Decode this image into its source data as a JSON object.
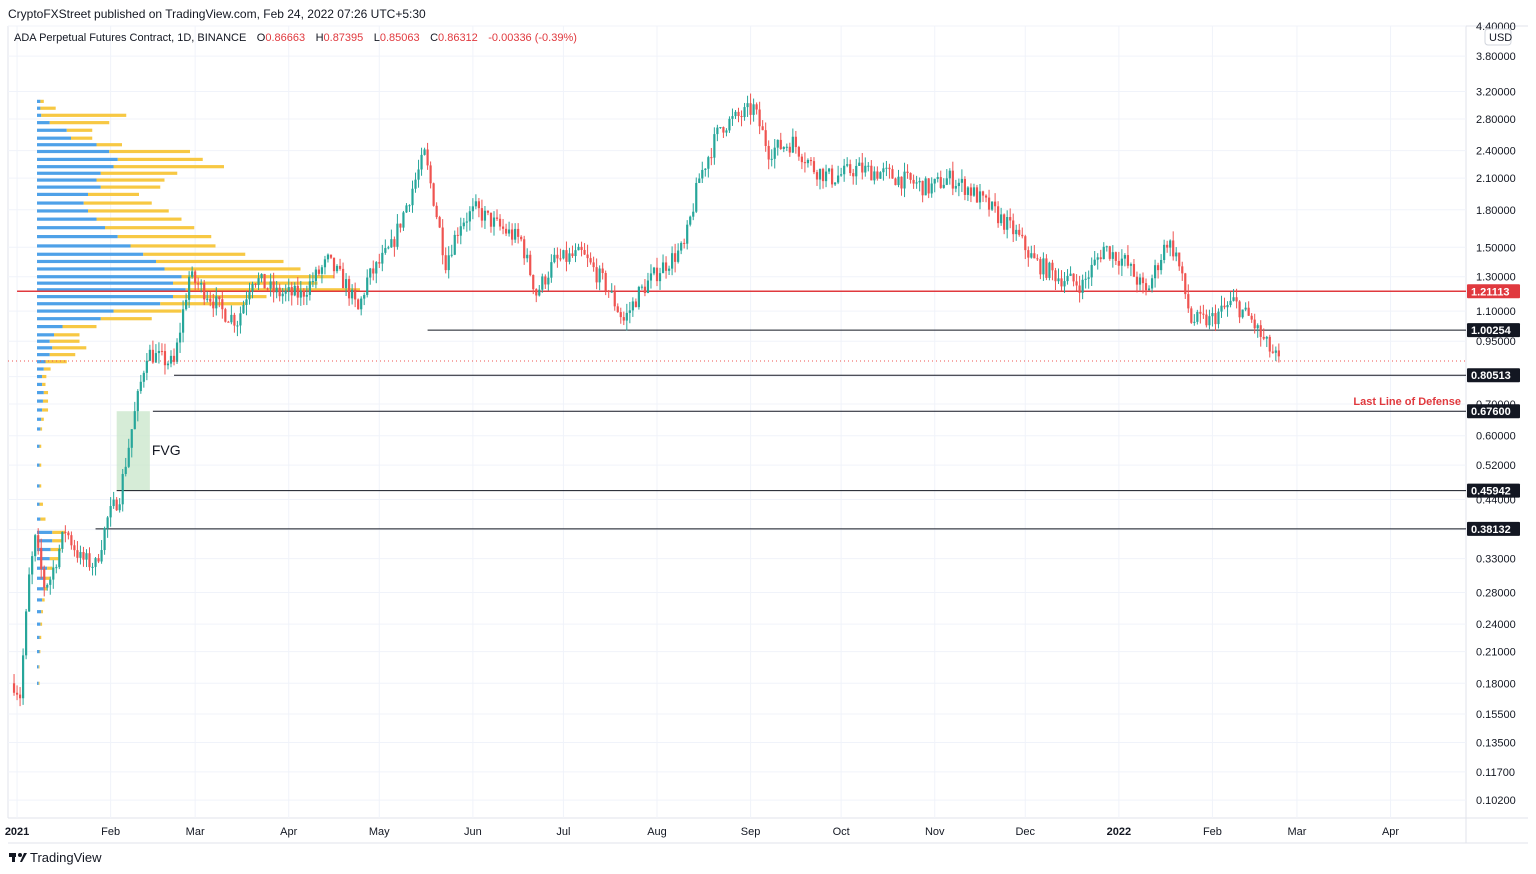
{
  "header": {
    "credit": "CryptoFXStreet published on TradingView.com, Feb 24, 2022 07:26 UTC+5:30"
  },
  "legend": {
    "symbol": "ADA Perpetual Futures Contract, 1D, BINANCE",
    "open_label": "O",
    "open": "0.86663",
    "high_label": "H",
    "high": "0.87395",
    "low_label": "L",
    "low": "0.85063",
    "close_label": "C",
    "close": "0.86312",
    "change": "-0.00336 (-0.39%)"
  },
  "currency_badge": "USD",
  "branding": "TradingView",
  "colors": {
    "up": "#26a69a",
    "down": "#ef5350",
    "vp_up": "#4ea1e8",
    "vp_down": "#f7c843",
    "resistance": "#e0393e",
    "fvg": "#c8e6c9"
  },
  "chart_data": {
    "type": "candlestick",
    "y_scale": "log",
    "ylim": [
      0.0935,
      4.4
    ],
    "x_ticks": [
      "2021",
      "Feb",
      "Mar",
      "Apr",
      "May",
      "Jun",
      "Jul",
      "Aug",
      "Sep",
      "Oct",
      "Nov",
      "Dec",
      "2022",
      "Feb",
      "Mar",
      "Apr"
    ],
    "x_range": [
      "2020-12-29",
      "2022-04-26"
    ],
    "y_ticks": [
      "0.10200",
      "0.11700",
      "0.13500",
      "0.15500",
      "0.18000",
      "0.21000",
      "0.24000",
      "0.28000",
      "0.33000",
      "0.38000",
      "0.44000",
      "0.52000",
      "0.60000",
      "0.70000",
      "0.80000",
      "0.95000",
      "1.10000",
      "1.30000",
      "1.50000",
      "1.80000",
      "2.10000",
      "2.40000",
      "2.80000",
      "3.20000",
      "3.80000",
      "4.40000"
    ],
    "levels": [
      {
        "value": 1.21113,
        "label": "1.21113",
        "color": "#e0393e",
        "from": "2021-01-01"
      },
      {
        "value": 1.00254,
        "label": "1.00254",
        "color": "#131722",
        "from": "2021-05-17"
      },
      {
        "value": 0.80513,
        "label": "0.80513",
        "color": "#131722",
        "from": "2021-02-22"
      },
      {
        "value": 0.676,
        "label": "0.67600",
        "color": "#131722",
        "from": "2021-02-15"
      },
      {
        "value": 0.45942,
        "label": "0.45942",
        "color": "#131722",
        "from": "2021-02-03"
      },
      {
        "value": 0.38132,
        "label": "0.38132",
        "color": "#131722",
        "from": "2021-01-27"
      }
    ],
    "annotations": [
      {
        "text": "FVG",
        "type": "box",
        "x_from": "2021-02-03",
        "x_to": "2021-02-14",
        "y_from": 0.45942,
        "y_to": 0.676
      },
      {
        "text": "Last Line of Defense",
        "at_level": 0.676
      }
    ],
    "last_price": 0.86312,
    "price_path": [
      [
        "2020-12-31",
        0.18
      ],
      [
        "2021-01-02",
        0.17
      ],
      [
        "2021-01-05",
        0.3
      ],
      [
        "2021-01-07",
        0.36
      ],
      [
        "2021-01-10",
        0.29
      ],
      [
        "2021-01-12",
        0.3
      ],
      [
        "2021-01-17",
        0.38
      ],
      [
        "2021-01-22",
        0.33
      ],
      [
        "2021-01-27",
        0.32
      ],
      [
        "2021-01-31",
        0.4
      ],
      [
        "2021-02-04",
        0.45
      ],
      [
        "2021-02-08",
        0.62
      ],
      [
        "2021-02-13",
        0.9
      ],
      [
        "2021-02-18",
        0.87
      ],
      [
        "2021-02-22",
        0.85
      ],
      [
        "2021-02-27",
        1.3
      ],
      [
        "2021-03-05",
        1.2
      ],
      [
        "2021-03-10",
        1.1
      ],
      [
        "2021-03-15",
        1.05
      ],
      [
        "2021-03-20",
        1.3
      ],
      [
        "2021-03-28",
        1.2
      ],
      [
        "2021-04-05",
        1.19
      ],
      [
        "2021-04-14",
        1.4
      ],
      [
        "2021-04-20",
        1.25
      ],
      [
        "2021-04-24",
        1.1
      ],
      [
        "2021-04-27",
        1.28
      ],
      [
        "2021-05-05",
        1.5
      ],
      [
        "2021-05-12",
        2.0
      ],
      [
        "2021-05-16",
        2.35
      ],
      [
        "2021-05-19",
        1.9
      ],
      [
        "2021-05-23",
        1.4
      ],
      [
        "2021-05-28",
        1.7
      ],
      [
        "2021-06-02",
        1.8
      ],
      [
        "2021-06-10",
        1.65
      ],
      [
        "2021-06-17",
        1.55
      ],
      [
        "2021-06-22",
        1.2
      ],
      [
        "2021-06-28",
        1.4
      ],
      [
        "2021-07-07",
        1.45
      ],
      [
        "2021-07-15",
        1.25
      ],
      [
        "2021-07-21",
        1.05
      ],
      [
        "2021-07-26",
        1.2
      ],
      [
        "2021-08-02",
        1.35
      ],
      [
        "2021-08-10",
        1.5
      ],
      [
        "2021-08-15",
        2.1
      ],
      [
        "2021-08-22",
        2.7
      ],
      [
        "2021-08-29",
        2.85
      ],
      [
        "2021-09-02",
        2.95
      ],
      [
        "2021-09-07",
        2.4
      ],
      [
        "2021-09-15",
        2.5
      ],
      [
        "2021-09-22",
        2.2
      ],
      [
        "2021-09-28",
        2.1
      ],
      [
        "2021-10-06",
        2.2
      ],
      [
        "2021-10-15",
        2.15
      ],
      [
        "2021-10-25",
        2.05
      ],
      [
        "2021-10-30",
        2.0
      ],
      [
        "2021-11-06",
        2.1
      ],
      [
        "2021-11-12",
        2.0
      ],
      [
        "2021-11-20",
        1.8
      ],
      [
        "2021-11-28",
        1.6
      ],
      [
        "2021-12-04",
        1.4
      ],
      [
        "2021-12-12",
        1.3
      ],
      [
        "2021-12-20",
        1.25
      ],
      [
        "2021-12-27",
        1.5
      ],
      [
        "2022-01-03",
        1.4
      ],
      [
        "2022-01-10",
        1.2
      ],
      [
        "2022-01-17",
        1.55
      ],
      [
        "2022-01-20",
        1.45
      ],
      [
        "2022-01-25",
        1.05
      ],
      [
        "2022-01-31",
        1.05
      ],
      [
        "2022-02-08",
        1.15
      ],
      [
        "2022-02-14",
        1.05
      ],
      [
        "2022-02-18",
        0.95
      ],
      [
        "2022-02-23",
        0.86
      ]
    ],
    "volume_profile_note": "session volume profile, split up/down volume",
    "volume_profile": [
      {
        "price": 3.05,
        "up": 4,
        "down": 4
      },
      {
        "price": 2.95,
        "up": 4,
        "down": 18
      },
      {
        "price": 2.85,
        "up": 5,
        "down": 100
      },
      {
        "price": 2.75,
        "up": 15,
        "down": 70
      },
      {
        "price": 2.65,
        "up": 35,
        "down": 30
      },
      {
        "price": 2.55,
        "up": 40,
        "down": 25
      },
      {
        "price": 2.47,
        "up": 70,
        "down": 30
      },
      {
        "price": 2.39,
        "up": 85,
        "down": 95
      },
      {
        "price": 2.3,
        "up": 95,
        "down": 100
      },
      {
        "price": 2.22,
        "up": 90,
        "down": 130
      },
      {
        "price": 2.15,
        "up": 75,
        "down": 90
      },
      {
        "price": 2.08,
        "up": 70,
        "down": 80
      },
      {
        "price": 2.01,
        "up": 75,
        "down": 70
      },
      {
        "price": 1.94,
        "up": 60,
        "down": 60
      },
      {
        "price": 1.86,
        "up": 55,
        "down": 80
      },
      {
        "price": 1.79,
        "up": 60,
        "down": 95
      },
      {
        "price": 1.72,
        "up": 70,
        "down": 100
      },
      {
        "price": 1.65,
        "up": 80,
        "down": 105
      },
      {
        "price": 1.58,
        "up": 95,
        "down": 110
      },
      {
        "price": 1.51,
        "up": 110,
        "down": 100
      },
      {
        "price": 1.45,
        "up": 125,
        "down": 120
      },
      {
        "price": 1.4,
        "up": 140,
        "down": 150
      },
      {
        "price": 1.35,
        "up": 150,
        "down": 160
      },
      {
        "price": 1.3,
        "up": 170,
        "down": 180
      },
      {
        "price": 1.26,
        "up": 160,
        "down": 170
      },
      {
        "price": 1.22,
        "up": 175,
        "down": 205
      },
      {
        "price": 1.18,
        "up": 160,
        "down": 110
      },
      {
        "price": 1.14,
        "up": 145,
        "down": 100
      },
      {
        "price": 1.1,
        "up": 90,
        "down": 80
      },
      {
        "price": 1.06,
        "up": 75,
        "down": 60
      },
      {
        "price": 1.02,
        "up": 30,
        "down": 40
      },
      {
        "price": 0.98,
        "up": 20,
        "down": 30
      },
      {
        "price": 0.95,
        "up": 15,
        "down": 35
      },
      {
        "price": 0.92,
        "up": 18,
        "down": 40
      },
      {
        "price": 0.89,
        "up": 15,
        "down": 30
      },
      {
        "price": 0.86,
        "up": 10,
        "down": 25
      },
      {
        "price": 0.83,
        "up": 8,
        "down": 8
      },
      {
        "price": 0.8,
        "up": 6,
        "down": 5
      },
      {
        "price": 0.77,
        "up": 6,
        "down": 4
      },
      {
        "price": 0.74,
        "up": 8,
        "down": 5
      },
      {
        "price": 0.71,
        "up": 7,
        "down": 6
      },
      {
        "price": 0.68,
        "up": 6,
        "down": 7
      },
      {
        "price": 0.65,
        "up": 5,
        "down": 3
      },
      {
        "price": 0.62,
        "up": 4,
        "down": 2
      },
      {
        "price": 0.57,
        "up": 3,
        "down": 2
      },
      {
        "price": 0.52,
        "up": 3,
        "down": 2
      },
      {
        "price": 0.47,
        "up": 3,
        "down": 2
      },
      {
        "price": 0.43,
        "up": 3,
        "down": 4
      },
      {
        "price": 0.4,
        "up": 4,
        "down": 6
      },
      {
        "price": 0.375,
        "up": 18,
        "down": 15
      },
      {
        "price": 0.36,
        "up": 18,
        "down": 12
      },
      {
        "price": 0.345,
        "up": 16,
        "down": 12
      },
      {
        "price": 0.33,
        "up": 15,
        "down": 10
      },
      {
        "price": 0.315,
        "up": 12,
        "down": 6
      },
      {
        "price": 0.3,
        "up": 10,
        "down": 6
      },
      {
        "price": 0.285,
        "up": 8,
        "down": 4
      },
      {
        "price": 0.27,
        "up": 6,
        "down": 3
      },
      {
        "price": 0.255,
        "up": 5,
        "down": 2
      },
      {
        "price": 0.24,
        "up": 4,
        "down": 2
      },
      {
        "price": 0.225,
        "up": 3,
        "down": 2
      },
      {
        "price": 0.21,
        "up": 3,
        "down": 1
      },
      {
        "price": 0.195,
        "up": 2,
        "down": 1
      },
      {
        "price": 0.18,
        "up": 2,
        "down": 1
      }
    ]
  }
}
